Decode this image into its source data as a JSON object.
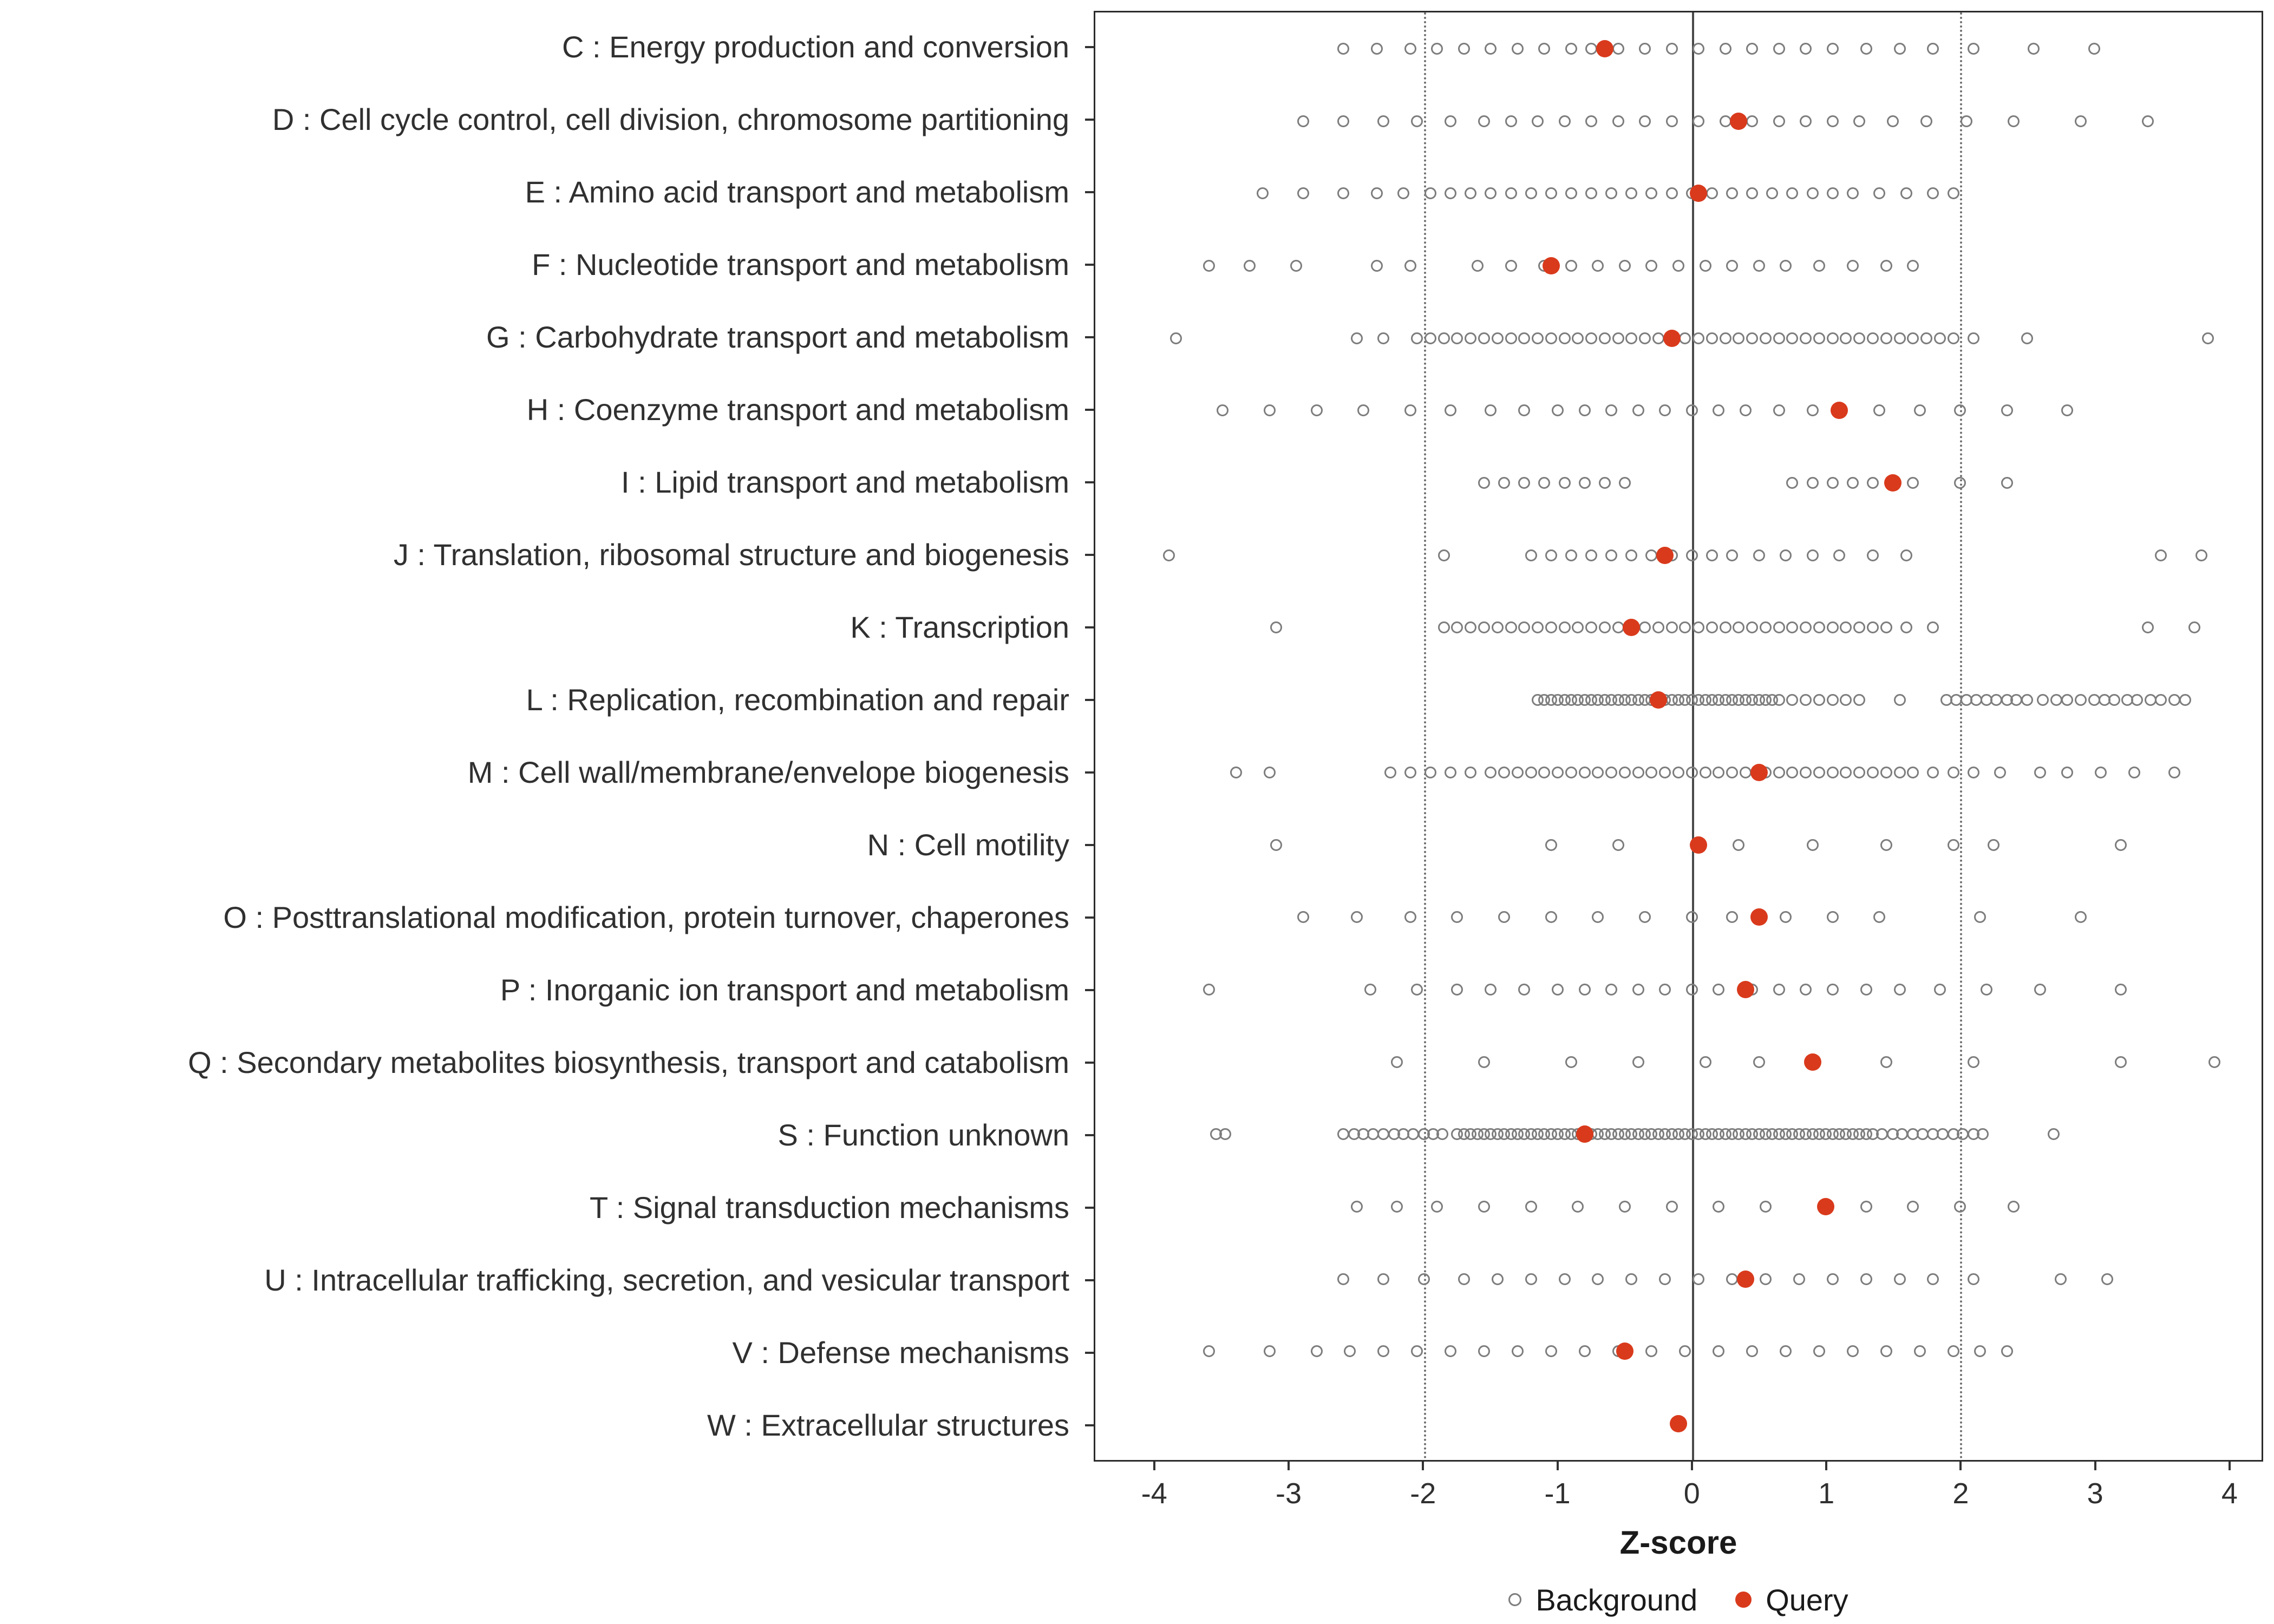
{
  "chart_data": {
    "type": "scatter",
    "subtype": "horizontal-strip-plot",
    "title": "",
    "xlabel": "Z-score",
    "ylabel": "",
    "xlim": [
      -4.45,
      4.25
    ],
    "xticks": [
      -4,
      -3,
      -2,
      -1,
      0,
      1,
      2,
      3,
      4
    ],
    "grid": false,
    "reference_lines": {
      "solid": [
        0
      ],
      "dotted": [
        -2,
        2
      ]
    },
    "colors": {
      "background": "#7d7d7d",
      "query": "#d93a1c"
    },
    "legend": {
      "position": "bottom",
      "background_label": "Background",
      "query_label": "Query"
    },
    "categories": [
      {
        "label": "C : Energy production and conversion",
        "query": -0.65,
        "background": [
          -2.6,
          -2.35,
          -2.1,
          -1.9,
          -1.7,
          -1.5,
          -1.3,
          -1.1,
          -0.9,
          -0.75,
          -0.55,
          -0.35,
          -0.15,
          0.05,
          0.25,
          0.45,
          0.65,
          0.85,
          1.05,
          1.3,
          1.55,
          1.8,
          2.1,
          2.55,
          3.0
        ]
      },
      {
        "label": "D : Cell cycle control, cell division, chromosome partitioning",
        "query": 0.35,
        "background": [
          -2.9,
          -2.6,
          -2.3,
          -2.05,
          -1.8,
          -1.55,
          -1.35,
          -1.15,
          -0.95,
          -0.75,
          -0.55,
          -0.35,
          -0.15,
          0.05,
          0.25,
          0.45,
          0.65,
          0.85,
          1.05,
          1.25,
          1.5,
          1.75,
          2.05,
          2.4,
          2.9,
          3.4
        ]
      },
      {
        "label": "E : Amino acid transport and metabolism",
        "query": 0.05,
        "background": [
          -3.2,
          -2.9,
          -2.6,
          -2.35,
          -2.15,
          -1.95,
          -1.8,
          -1.65,
          -1.5,
          -1.35,
          -1.2,
          -1.05,
          -0.9,
          -0.75,
          -0.6,
          -0.45,
          -0.3,
          -0.15,
          0.0,
          0.15,
          0.3,
          0.45,
          0.6,
          0.75,
          0.9,
          1.05,
          1.2,
          1.4,
          1.6,
          1.8,
          1.95
        ]
      },
      {
        "label": "F : Nucleotide transport and metabolism",
        "query": -1.05,
        "background": [
          -3.6,
          -3.3,
          -2.95,
          -2.35,
          -2.1,
          -1.6,
          -1.35,
          -1.1,
          -0.9,
          -0.7,
          -0.5,
          -0.3,
          -0.1,
          0.1,
          0.3,
          0.5,
          0.7,
          0.95,
          1.2,
          1.45,
          1.65
        ]
      },
      {
        "label": "G : Carbohydrate transport and metabolism",
        "query": -0.15,
        "background": [
          -3.85,
          -2.5,
          -2.3,
          -2.05,
          -1.95,
          -1.85,
          -1.75,
          -1.65,
          -1.55,
          -1.45,
          -1.35,
          -1.25,
          -1.15,
          -1.05,
          -0.95,
          -0.85,
          -0.75,
          -0.65,
          -0.55,
          -0.45,
          -0.35,
          -0.25,
          -0.15,
          -0.05,
          0.05,
          0.15,
          0.25,
          0.35,
          0.45,
          0.55,
          0.65,
          0.75,
          0.85,
          0.95,
          1.05,
          1.15,
          1.25,
          1.35,
          1.45,
          1.55,
          1.65,
          1.75,
          1.85,
          1.95,
          2.1,
          2.5,
          3.85
        ]
      },
      {
        "label": "H : Coenzyme transport and metabolism",
        "query": 1.1,
        "background": [
          -3.5,
          -3.15,
          -2.8,
          -2.45,
          -2.1,
          -1.8,
          -1.5,
          -1.25,
          -1.0,
          -0.8,
          -0.6,
          -0.4,
          -0.2,
          0.0,
          0.2,
          0.4,
          0.65,
          0.9,
          1.4,
          1.7,
          2.0,
          2.35,
          2.8
        ]
      },
      {
        "label": "I : Lipid transport and metabolism",
        "query": 1.5,
        "background": [
          -1.55,
          -1.4,
          -1.25,
          -1.1,
          -0.95,
          -0.8,
          -0.65,
          -0.5,
          0.75,
          0.9,
          1.05,
          1.2,
          1.35,
          1.65,
          2.0,
          2.35
        ]
      },
      {
        "label": "J : Translation, ribosomal structure and biogenesis",
        "query": -0.2,
        "background": [
          -3.9,
          -1.85,
          -1.2,
          -1.05,
          -0.9,
          -0.75,
          -0.6,
          -0.45,
          -0.3,
          -0.15,
          0.0,
          0.15,
          0.3,
          0.5,
          0.7,
          0.9,
          1.1,
          1.35,
          1.6,
          3.5,
          3.8
        ]
      },
      {
        "label": "K : Transcription",
        "query": -0.45,
        "background": [
          -3.1,
          -1.85,
          -1.75,
          -1.65,
          -1.55,
          -1.45,
          -1.35,
          -1.25,
          -1.15,
          -1.05,
          -0.95,
          -0.85,
          -0.75,
          -0.65,
          -0.55,
          -0.45,
          -0.35,
          -0.25,
          -0.15,
          -0.05,
          0.05,
          0.15,
          0.25,
          0.35,
          0.45,
          0.55,
          0.65,
          0.75,
          0.85,
          0.95,
          1.05,
          1.15,
          1.25,
          1.35,
          1.45,
          1.6,
          1.8,
          3.4,
          3.75
        ]
      },
      {
        "label": "L : Replication, recombination and repair",
        "query": -0.25,
        "background": [
          -1.15,
          -1.1,
          -1.05,
          -1.0,
          -0.95,
          -0.9,
          -0.85,
          -0.8,
          -0.75,
          -0.7,
          -0.65,
          -0.6,
          -0.55,
          -0.5,
          -0.45,
          -0.4,
          -0.35,
          -0.3,
          -0.25,
          -0.2,
          -0.15,
          -0.1,
          -0.05,
          0.0,
          0.05,
          0.1,
          0.15,
          0.2,
          0.25,
          0.3,
          0.35,
          0.4,
          0.45,
          0.5,
          0.55,
          0.6,
          0.65,
          0.75,
          0.85,
          0.95,
          1.05,
          1.15,
          1.25,
          1.55,
          1.9,
          1.97,
          2.05,
          2.12,
          2.2,
          2.27,
          2.35,
          2.42,
          2.5,
          2.62,
          2.72,
          2.8,
          2.9,
          3.0,
          3.08,
          3.15,
          3.25,
          3.32,
          3.42,
          3.5,
          3.6,
          3.68
        ]
      },
      {
        "label": "M : Cell wall/membrane/envelope biogenesis",
        "query": 0.5,
        "background": [
          -3.4,
          -3.15,
          -2.25,
          -2.1,
          -1.95,
          -1.8,
          -1.65,
          -1.5,
          -1.4,
          -1.3,
          -1.2,
          -1.1,
          -1.0,
          -0.9,
          -0.8,
          -0.7,
          -0.6,
          -0.5,
          -0.4,
          -0.3,
          -0.2,
          -0.1,
          0.0,
          0.1,
          0.2,
          0.3,
          0.4,
          0.55,
          0.65,
          0.75,
          0.85,
          0.95,
          1.05,
          1.15,
          1.25,
          1.35,
          1.45,
          1.55,
          1.65,
          1.8,
          1.95,
          2.1,
          2.3,
          2.6,
          2.8,
          3.05,
          3.3,
          3.6
        ]
      },
      {
        "label": "N : Cell motility",
        "query": 0.05,
        "background": [
          -3.1,
          -1.05,
          -0.55,
          0.35,
          0.9,
          1.45,
          1.95,
          2.25,
          3.2
        ]
      },
      {
        "label": "O : Posttranslational modification, protein turnover, chaperones",
        "query": 0.5,
        "background": [
          -2.9,
          -2.5,
          -2.1,
          -1.75,
          -1.4,
          -1.05,
          -0.7,
          -0.35,
          0.0,
          0.3,
          0.7,
          1.05,
          1.4,
          2.15,
          2.9
        ]
      },
      {
        "label": "P : Inorganic ion transport and metabolism",
        "query": 0.4,
        "background": [
          -3.6,
          -2.4,
          -2.05,
          -1.75,
          -1.5,
          -1.25,
          -1.0,
          -0.8,
          -0.6,
          -0.4,
          -0.2,
          0.0,
          0.2,
          0.45,
          0.65,
          0.85,
          1.05,
          1.3,
          1.55,
          1.85,
          2.2,
          2.6,
          3.2
        ]
      },
      {
        "label": "Q : Secondary metabolites biosynthesis, transport and catabolism",
        "query": 0.9,
        "background": [
          -2.2,
          -1.55,
          -0.9,
          -0.4,
          0.1,
          0.5,
          1.45,
          2.1,
          3.2,
          3.9
        ]
      },
      {
        "label": "S : Function unknown",
        "query": -0.8,
        "background": [
          -3.55,
          -3.48,
          -2.6,
          -2.52,
          -2.45,
          -2.38,
          -2.3,
          -2.22,
          -2.15,
          -2.08,
          -2.0,
          -1.93,
          -1.86,
          -1.75,
          -1.7,
          -1.65,
          -1.6,
          -1.55,
          -1.5,
          -1.45,
          -1.4,
          -1.35,
          -1.3,
          -1.25,
          -1.2,
          -1.15,
          -1.1,
          -1.05,
          -1.0,
          -0.95,
          -0.9,
          -0.85,
          -0.8,
          -0.75,
          -0.7,
          -0.65,
          -0.6,
          -0.55,
          -0.5,
          -0.45,
          -0.4,
          -0.35,
          -0.3,
          -0.25,
          -0.2,
          -0.15,
          -0.1,
          -0.05,
          0.0,
          0.05,
          0.1,
          0.15,
          0.2,
          0.25,
          0.3,
          0.35,
          0.4,
          0.45,
          0.5,
          0.55,
          0.6,
          0.65,
          0.7,
          0.75,
          0.8,
          0.85,
          0.9,
          0.95,
          1.0,
          1.05,
          1.1,
          1.15,
          1.2,
          1.25,
          1.3,
          1.35,
          1.42,
          1.5,
          1.57,
          1.65,
          1.72,
          1.8,
          1.87,
          1.95,
          2.02,
          2.1,
          2.17,
          2.7
        ]
      },
      {
        "label": "T : Signal transduction mechanisms",
        "query": 1.0,
        "background": [
          -2.5,
          -2.2,
          -1.9,
          -1.55,
          -1.2,
          -0.85,
          -0.5,
          -0.15,
          0.2,
          0.55,
          1.3,
          1.65,
          2.0,
          2.4
        ]
      },
      {
        "label": "U : Intracellular trafficking, secretion, and vesicular transport",
        "query": 0.4,
        "background": [
          -2.6,
          -2.3,
          -2.0,
          -1.7,
          -1.45,
          -1.2,
          -0.95,
          -0.7,
          -0.45,
          -0.2,
          0.05,
          0.3,
          0.55,
          0.8,
          1.05,
          1.3,
          1.55,
          1.8,
          2.1,
          2.75,
          3.1
        ]
      },
      {
        "label": "V : Defense mechanisms",
        "query": -0.5,
        "background": [
          -3.6,
          -3.15,
          -2.8,
          -2.55,
          -2.3,
          -2.05,
          -1.8,
          -1.55,
          -1.3,
          -1.05,
          -0.8,
          -0.55,
          -0.3,
          -0.05,
          0.2,
          0.45,
          0.7,
          0.95,
          1.2,
          1.45,
          1.7,
          1.95,
          2.15,
          2.35
        ]
      },
      {
        "label": "W : Extracellular structures",
        "query": -0.1,
        "background": []
      }
    ]
  }
}
